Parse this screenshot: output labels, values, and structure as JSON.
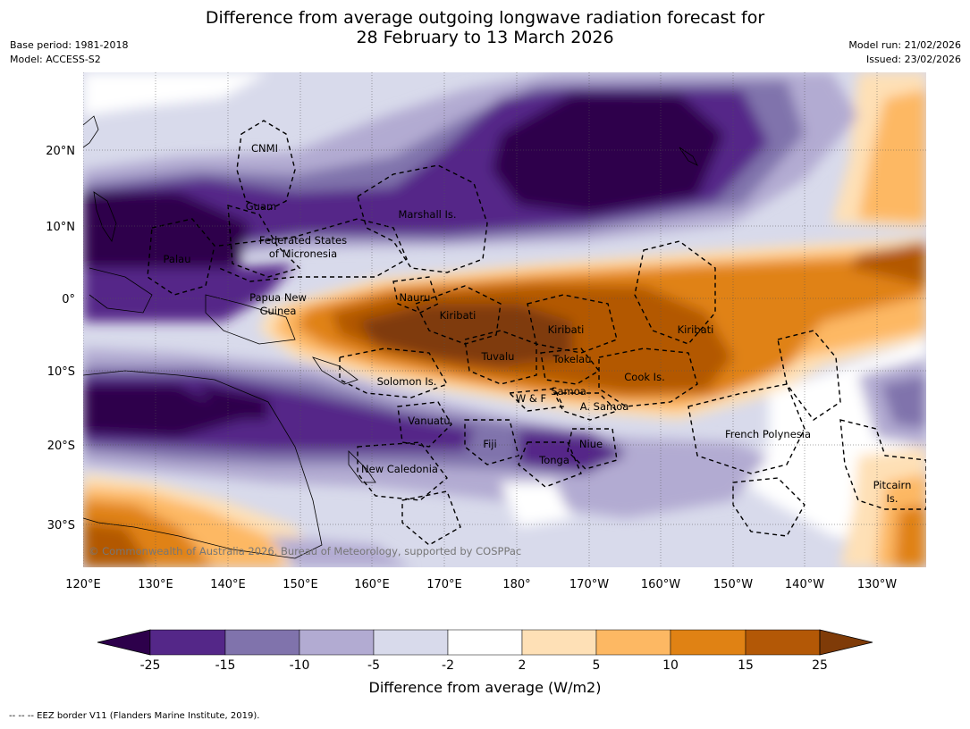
{
  "title_line1": "Difference from average outgoing longwave radiation forecast for",
  "title_line2": "28 February to 13 March 2026",
  "meta": {
    "base_period": "Base period: 1981-2018",
    "model": "Model: ACCESS-S2",
    "model_run": "Model run: 21/02/2026",
    "issued": "Issued: 23/02/2026"
  },
  "axis": {
    "lon_labels": [
      "120°E",
      "130°E",
      "140°E",
      "150°E",
      "160°E",
      "170°E",
      "180°",
      "170°W",
      "160°W",
      "150°W",
      "140°W",
      "130°W"
    ],
    "lat_labels": [
      "20°N",
      "10°N",
      "0°",
      "10°S",
      "20°S",
      "30°S"
    ]
  },
  "regions": [
    {
      "id": "cnmi",
      "label": "CNMI"
    },
    {
      "id": "guam",
      "label": "Guam"
    },
    {
      "id": "marshall",
      "label": "Marshall Is."
    },
    {
      "id": "fsm1",
      "label": "Federated States"
    },
    {
      "id": "fsm2",
      "label": "of Micronesia"
    },
    {
      "id": "palau",
      "label": "Palau"
    },
    {
      "id": "nauru",
      "label": "Nauru"
    },
    {
      "id": "png1",
      "label": "Papua New"
    },
    {
      "id": "png2",
      "label": "Guinea"
    },
    {
      "id": "kiribati1",
      "label": "Kiribati"
    },
    {
      "id": "kiribati2",
      "label": "Kiribati"
    },
    {
      "id": "kiribati3",
      "label": "Kiribati"
    },
    {
      "id": "tuvalu",
      "label": "Tuvalu"
    },
    {
      "id": "tokelau",
      "label": "Tokelau"
    },
    {
      "id": "cook",
      "label": "Cook Is."
    },
    {
      "id": "solomon",
      "label": "Solomon Is."
    },
    {
      "id": "wf",
      "label": "W & F"
    },
    {
      "id": "samoa",
      "label": "Samoa"
    },
    {
      "id": "asamoa",
      "label": "A. Samoa"
    },
    {
      "id": "vanuatu",
      "label": "Vanuatu"
    },
    {
      "id": "fiji",
      "label": "Fiji"
    },
    {
      "id": "niue",
      "label": "Niue"
    },
    {
      "id": "tonga",
      "label": "Tonga"
    },
    {
      "id": "newcal",
      "label": "New Caledonia"
    },
    {
      "id": "frpoly",
      "label": "French Polynesia"
    },
    {
      "id": "pitcairn1",
      "label": "Pitcairn"
    },
    {
      "id": "pitcairn2",
      "label": "Is."
    }
  ],
  "copyright": "© Commonwealth of Australia 2026, Bureau of Meteorology, supported by COSPPac",
  "colorbar": {
    "ticks": [
      "-25",
      "-15",
      "-10",
      "-5",
      "-2",
      "2",
      "5",
      "10",
      "15",
      "25"
    ],
    "colors": [
      "#2d004b",
      "#542788",
      "#8073ac",
      "#b2abd2",
      "#d8daeb",
      "#ffffff",
      "#fee0b6",
      "#fdb863",
      "#e08214",
      "#b35806",
      "#7f3b08"
    ],
    "title": "Difference from average (W/m2)"
  },
  "footer": "--  --  -- EEZ border V11 (Flanders Marine Institute, 2019)."
}
